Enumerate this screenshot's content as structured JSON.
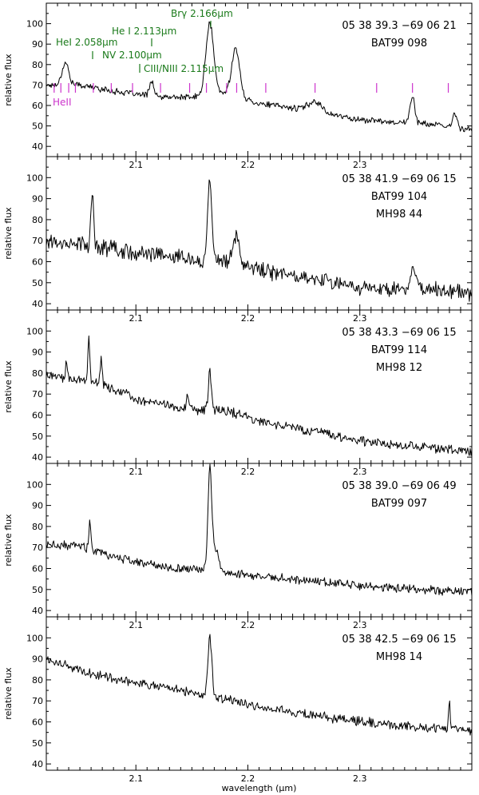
{
  "colors": {
    "spectrum": "#000000",
    "line_ids": "#1a7a1a",
    "heii_markers": "#cc33cc"
  },
  "chart_data": [
    {
      "type": "line",
      "title": "",
      "xlabel": "",
      "ylabel": "relative flux",
      "xlim": [
        2.02,
        2.4
      ],
      "ylim": [
        35,
        110
      ],
      "x_ticks": [
        2.1,
        2.2,
        2.3
      ],
      "y_ticks": [
        40,
        50,
        60,
        70,
        80,
        90,
        100
      ],
      "annotations": [
        "05 38 39.3 −69 06 21",
        "BAT99 098"
      ],
      "continuum": [
        [
          2.02,
          70
        ],
        [
          2.05,
          70
        ],
        [
          2.08,
          67
        ],
        [
          2.12,
          64
        ],
        [
          2.15,
          64
        ],
        [
          2.18,
          66
        ],
        [
          2.21,
          61
        ],
        [
          2.25,
          58
        ],
        [
          2.27,
          56
        ],
        [
          2.3,
          53
        ],
        [
          2.33,
          52
        ],
        [
          2.36,
          51
        ],
        [
          2.4,
          48
        ]
      ],
      "emission_lines": [
        {
          "center": 2.037,
          "peak": 81,
          "width": 0.003
        },
        {
          "center": 2.114,
          "peak": 72,
          "width": 0.002
        },
        {
          "center": 2.166,
          "peak": 100,
          "width": 0.0035
        },
        {
          "center": 2.189,
          "peak": 88,
          "width": 0.0035
        },
        {
          "center": 2.26,
          "peak": 62,
          "width": 0.006
        },
        {
          "center": 2.347,
          "peak": 65,
          "width": 0.002
        },
        {
          "center": 2.385,
          "peak": 56,
          "width": 0.002
        }
      ],
      "noise": 1.2,
      "line_ids": [
        {
          "label": "HeI 2.058μm",
          "wavelength": 2.058
        },
        {
          "label": "He I 2.113μm",
          "wavelength": 2.113
        },
        {
          "label": "Brγ 2.166μm",
          "wavelength": 2.166
        },
        {
          "label": "NV 2.100μm",
          "wavelength": 2.1
        },
        {
          "label": "CIII/NIII 2.115μm",
          "wavelength": 2.115
        }
      ],
      "heii_label": "HeII",
      "heii_markers": [
        2.027,
        2.033,
        2.04,
        2.046,
        2.062,
        2.078,
        2.097,
        2.122,
        2.148,
        2.163,
        2.181,
        2.19,
        2.216,
        2.26,
        2.315,
        2.347,
        2.379
      ]
    },
    {
      "type": "line",
      "title": "",
      "xlabel": "",
      "ylabel": "relative flux",
      "xlim": [
        2.02,
        2.4
      ],
      "ylim": [
        37,
        110
      ],
      "x_ticks": [
        2.1,
        2.2,
        2.3
      ],
      "y_ticks": [
        40,
        50,
        60,
        70,
        80,
        90,
        100
      ],
      "annotations": [
        "05 38 41.9 −69 06 15",
        "BAT99 104",
        "MH98 44"
      ],
      "continuum": [
        [
          2.02,
          70
        ],
        [
          2.06,
          68
        ],
        [
          2.1,
          64
        ],
        [
          2.14,
          62
        ],
        [
          2.18,
          60
        ],
        [
          2.22,
          55
        ],
        [
          2.27,
          51
        ],
        [
          2.3,
          48
        ],
        [
          2.34,
          47
        ],
        [
          2.38,
          46
        ],
        [
          2.4,
          45
        ]
      ],
      "emission_lines": [
        {
          "center": 2.061,
          "peak": 92,
          "width": 0.0012
        },
        {
          "center": 2.166,
          "peak": 100,
          "width": 0.0018
        },
        {
          "center": 2.189,
          "peak": 72,
          "width": 0.003
        },
        {
          "center": 2.348,
          "peak": 58,
          "width": 0.002
        }
      ],
      "noise": 3.0
    },
    {
      "type": "line",
      "title": "",
      "xlabel": "",
      "ylabel": "relative flux",
      "xlim": [
        2.02,
        2.4
      ],
      "ylim": [
        37,
        110
      ],
      "x_ticks": [
        2.1,
        2.2,
        2.3
      ],
      "y_ticks": [
        40,
        50,
        60,
        70,
        80,
        90,
        100
      ],
      "annotations": [
        "05 38 43.3 −69 06 15",
        "BAT99 114",
        "MH98 12"
      ],
      "continuum": [
        [
          2.02,
          79
        ],
        [
          2.06,
          76
        ],
        [
          2.1,
          68
        ],
        [
          2.14,
          63
        ],
        [
          2.18,
          62
        ],
        [
          2.22,
          56
        ],
        [
          2.27,
          51
        ],
        [
          2.3,
          48
        ],
        [
          2.35,
          45
        ],
        [
          2.4,
          43
        ]
      ],
      "emission_lines": [
        {
          "center": 2.058,
          "peak": 100,
          "width": 0.0008
        },
        {
          "center": 2.038,
          "peak": 85,
          "width": 0.0008
        },
        {
          "center": 2.069,
          "peak": 89,
          "width": 0.0008
        },
        {
          "center": 2.166,
          "peak": 82,
          "width": 0.0012
        },
        {
          "center": 2.146,
          "peak": 70,
          "width": 0.0008
        }
      ],
      "noise": 1.8
    },
    {
      "type": "line",
      "title": "",
      "xlabel": "",
      "ylabel": "relative flux",
      "xlim": [
        2.02,
        2.4
      ],
      "ylim": [
        37,
        110
      ],
      "x_ticks": [
        2.1,
        2.2,
        2.3
      ],
      "y_ticks": [
        40,
        50,
        60,
        70,
        80,
        90,
        100
      ],
      "annotations": [
        "05 38 39.0 −69 06 49",
        "BAT99 097"
      ],
      "continuum": [
        [
          2.02,
          71
        ],
        [
          2.05,
          71
        ],
        [
          2.07,
          67
        ],
        [
          2.1,
          63
        ],
        [
          2.14,
          60
        ],
        [
          2.18,
          58
        ],
        [
          2.22,
          56
        ],
        [
          2.26,
          54
        ],
        [
          2.3,
          52
        ],
        [
          2.35,
          50
        ],
        [
          2.4,
          49
        ]
      ],
      "emission_lines": [
        {
          "center": 2.166,
          "peak": 100,
          "width": 0.0015
        },
        {
          "center": 2.169,
          "peak": 72,
          "width": 0.004
        },
        {
          "center": 2.059,
          "peak": 83,
          "width": 0.0008
        }
      ],
      "noise": 1.6
    },
    {
      "type": "line",
      "title": "",
      "xlabel": "wavelength (μm)",
      "ylabel": "relative flux",
      "xlim": [
        2.02,
        2.4
      ],
      "ylim": [
        37,
        110
      ],
      "x_ticks": [
        2.1,
        2.2,
        2.3
      ],
      "y_ticks": [
        40,
        50,
        60,
        70,
        80,
        90,
        100
      ],
      "annotations": [
        "05 38 42.5 −69 06 15",
        "MH98 14"
      ],
      "continuum": [
        [
          2.02,
          90
        ],
        [
          2.06,
          83
        ],
        [
          2.1,
          79
        ],
        [
          2.14,
          75
        ],
        [
          2.18,
          71
        ],
        [
          2.22,
          66
        ],
        [
          2.27,
          62
        ],
        [
          2.32,
          59
        ],
        [
          2.36,
          57
        ],
        [
          2.4,
          56
        ]
      ],
      "emission_lines": [
        {
          "center": 2.166,
          "peak": 100,
          "width": 0.0018
        },
        {
          "center": 2.38,
          "peak": 70,
          "width": 0.0008
        }
      ],
      "noise": 1.8
    }
  ]
}
